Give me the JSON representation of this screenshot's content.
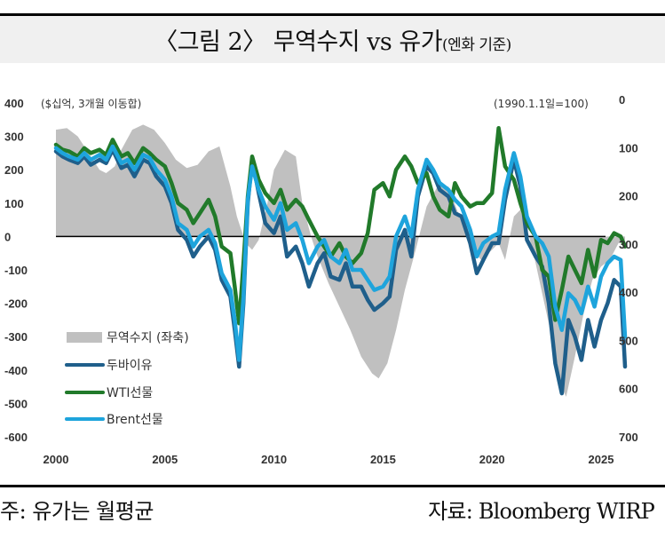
{
  "header": {
    "title_main": "〈그림 2〉 무역수지 vs 유가",
    "title_sub": "(엔화 기준)"
  },
  "footer": {
    "note": "주: 유가는 월평균",
    "source": "자료: Bloomberg WIRP"
  },
  "colors": {
    "trade_balance": "#c0c0c0",
    "dubai": "#1f5f8b",
    "wti": "#217a2a",
    "brent": "#1ea4dc",
    "zero_line": "#000000"
  },
  "chart_data": {
    "type": "line",
    "title": "무역수지 vs 유가(엔화 기준)",
    "left_axis": {
      "label": "($십억, 3개월 이동합)",
      "range": [
        -600,
        400
      ],
      "ticks": [
        400,
        300,
        200,
        100,
        0,
        -100,
        -200,
        -300,
        -400,
        -500,
        -600
      ]
    },
    "right_axis": {
      "label": "(1990.1.1일=100)",
      "range": [
        0,
        700
      ],
      "inverted": true,
      "ticks": [
        0,
        100,
        200,
        300,
        400,
        500,
        600,
        700
      ]
    },
    "x_axis": {
      "range": [
        2000,
        2026.3
      ],
      "ticks": [
        2000,
        2005,
        2010,
        2015,
        2020,
        2025
      ]
    },
    "legend": {
      "position": "bottom-left",
      "entries": [
        "무역수지 (좌축)",
        "두바이유",
        "WTI선물",
        "Brent선물"
      ]
    },
    "series": [
      {
        "name": "무역수지 (좌축)",
        "kind": "area",
        "axis": "left",
        "x": [
          2000,
          2000.5,
          2001,
          2001.5,
          2002,
          2002.3,
          2002.7,
          2003,
          2003.5,
          2004,
          2004.5,
          2005,
          2005.5,
          2006,
          2006.5,
          2007,
          2007.5,
          2008,
          2008.3,
          2008.7,
          2009,
          2009.3,
          2009.7,
          2010,
          2010.5,
          2011,
          2011.3,
          2011.7,
          2012,
          2012.5,
          2013,
          2013.5,
          2014,
          2014.5,
          2014.8,
          2015.2,
          2015.6,
          2016,
          2016.5,
          2017,
          2017.5,
          2018,
          2018.5,
          2019,
          2019.5,
          2020,
          2020.3,
          2020.6,
          2021,
          2021.3,
          2021.7,
          2022,
          2022.4,
          2022.8,
          2023.1,
          2023.4,
          2023.8,
          2024.2,
          2024.6,
          2025,
          2025.4,
          2025.8,
          2026.1
        ],
        "values": [
          320,
          325,
          300,
          250,
          200,
          190,
          210,
          260,
          320,
          335,
          320,
          280,
          230,
          205,
          215,
          255,
          270,
          150,
          60,
          -20,
          -40,
          -10,
          100,
          200,
          260,
          240,
          100,
          0,
          -60,
          -140,
          -210,
          -280,
          -360,
          -410,
          -425,
          -380,
          -280,
          -160,
          -40,
          90,
          150,
          150,
          60,
          -30,
          -70,
          -40,
          -20,
          -70,
          60,
          80,
          0,
          -80,
          -200,
          -320,
          -440,
          -480,
          -360,
          -230,
          -130,
          -90,
          -70,
          -20,
          -10
        ]
      },
      {
        "name": "두바이유",
        "kind": "line",
        "axis": "left",
        "x": [
          2000,
          2000.3,
          2000.6,
          2001,
          2001.3,
          2001.6,
          2002,
          2002.3,
          2002.6,
          2003,
          2003.3,
          2003.6,
          2004,
          2004.3,
          2004.6,
          2005,
          2005.3,
          2005.6,
          2006,
          2006.3,
          2006.6,
          2007,
          2007.3,
          2007.6,
          2008,
          2008.2,
          2008.4,
          2008.6,
          2008.8,
          2009,
          2009.3,
          2009.6,
          2010,
          2010.3,
          2010.6,
          2011,
          2011.3,
          2011.6,
          2012,
          2012.3,
          2012.6,
          2013,
          2013.3,
          2013.6,
          2014,
          2014.3,
          2014.6,
          2015,
          2015.3,
          2015.6,
          2016,
          2016.3,
          2016.6,
          2017,
          2017.3,
          2017.6,
          2018,
          2018.3,
          2018.6,
          2019,
          2019.3,
          2019.6,
          2020,
          2020.3,
          2020.6,
          2021,
          2021.3,
          2021.6,
          2022,
          2022.3,
          2022.6,
          2022.9,
          2023.2,
          2023.5,
          2023.8,
          2024.1,
          2024.4,
          2024.7,
          2025,
          2025.3,
          2025.6,
          2025.9,
          2026.1
        ],
        "values": [
          255,
          240,
          230,
          220,
          240,
          215,
          230,
          220,
          260,
          205,
          215,
          180,
          230,
          220,
          180,
          150,
          100,
          20,
          -10,
          -60,
          -30,
          0,
          -40,
          -130,
          -180,
          -280,
          -390,
          -200,
          100,
          230,
          130,
          40,
          10,
          60,
          -60,
          -30,
          -80,
          -150,
          -80,
          -50,
          -120,
          -130,
          -80,
          -150,
          -150,
          -190,
          -220,
          -200,
          -180,
          -40,
          20,
          -60,
          120,
          210,
          190,
          140,
          120,
          70,
          60,
          -20,
          -110,
          -70,
          -20,
          -20,
          110,
          230,
          150,
          -10,
          -60,
          -90,
          -200,
          -380,
          -470,
          -250,
          -300,
          -370,
          -250,
          -330,
          -250,
          -200,
          -130,
          -150,
          -390
        ]
      },
      {
        "name": "WTI선물",
        "kind": "line",
        "axis": "left",
        "x": [
          2000,
          2000.3,
          2000.6,
          2001,
          2001.3,
          2001.6,
          2002,
          2002.3,
          2002.6,
          2003,
          2003.3,
          2003.6,
          2004,
          2004.3,
          2004.6,
          2005,
          2005.3,
          2005.6,
          2006,
          2006.3,
          2006.6,
          2007,
          2007.3,
          2007.6,
          2008,
          2008.2,
          2008.4,
          2008.6,
          2008.8,
          2009,
          2009.3,
          2009.6,
          2010,
          2010.3,
          2010.6,
          2011,
          2011.3,
          2011.6,
          2012,
          2012.3,
          2012.6,
          2013,
          2013.3,
          2013.6,
          2014,
          2014.3,
          2014.6,
          2015,
          2015.3,
          2015.6,
          2016,
          2016.3,
          2016.6,
          2017,
          2017.3,
          2017.6,
          2018,
          2018.3,
          2018.6,
          2019,
          2019.3,
          2019.6,
          2020,
          2020.3,
          2020.6,
          2021,
          2021.3,
          2021.6,
          2022,
          2022.3,
          2022.6,
          2022.9,
          2023.2,
          2023.5,
          2023.8,
          2024.1,
          2024.4,
          2024.7,
          2025,
          2025.3,
          2025.6,
          2025.9,
          2026.1
        ],
        "values": [
          275,
          260,
          255,
          240,
          265,
          250,
          260,
          245,
          290,
          240,
          250,
          220,
          265,
          250,
          230,
          210,
          160,
          100,
          80,
          40,
          70,
          110,
          60,
          -30,
          -50,
          -150,
          -260,
          -80,
          120,
          240,
          170,
          130,
          100,
          140,
          80,
          110,
          90,
          50,
          0,
          -30,
          -60,
          -20,
          -60,
          -80,
          -50,
          10,
          140,
          160,
          120,
          200,
          240,
          210,
          160,
          190,
          120,
          80,
          60,
          160,
          120,
          90,
          100,
          100,
          130,
          325,
          210,
          170,
          100,
          40,
          0,
          -100,
          -120,
          -250,
          -160,
          -60,
          -100,
          -140,
          -40,
          -120,
          -10,
          -20,
          10,
          0,
          -30
        ]
      },
      {
        "name": "Brent선물",
        "kind": "line",
        "axis": "left",
        "x": [
          2000,
          2000.3,
          2000.6,
          2001,
          2001.3,
          2001.6,
          2002,
          2002.3,
          2002.6,
          2003,
          2003.3,
          2003.6,
          2004,
          2004.3,
          2004.6,
          2005,
          2005.3,
          2005.6,
          2006,
          2006.3,
          2006.6,
          2007,
          2007.3,
          2007.6,
          2008,
          2008.2,
          2008.4,
          2008.6,
          2008.8,
          2009,
          2009.3,
          2009.6,
          2010,
          2010.3,
          2010.6,
          2011,
          2011.3,
          2011.6,
          2012,
          2012.3,
          2012.6,
          2013,
          2013.3,
          2013.6,
          2014,
          2014.3,
          2014.6,
          2015,
          2015.3,
          2015.6,
          2016,
          2016.3,
          2016.6,
          2017,
          2017.3,
          2017.6,
          2018,
          2018.3,
          2018.6,
          2019,
          2019.3,
          2019.6,
          2020,
          2020.3,
          2020.6,
          2021,
          2021.3,
          2021.6,
          2022,
          2022.3,
          2022.6,
          2022.9,
          2023.2,
          2023.5,
          2023.8,
          2024.1,
          2024.4,
          2024.7,
          2025,
          2025.3,
          2025.6,
          2025.9,
          2026.1
        ],
        "values": [
          265,
          250,
          240,
          230,
          250,
          230,
          245,
          230,
          270,
          220,
          230,
          200,
          245,
          235,
          200,
          170,
          120,
          40,
          20,
          -30,
          0,
          20,
          -20,
          -110,
          -160,
          -250,
          -370,
          -180,
          110,
          210,
          140,
          90,
          50,
          100,
          20,
          40,
          -10,
          -80,
          -30,
          -10,
          -60,
          -80,
          -40,
          -100,
          -100,
          -130,
          -160,
          -150,
          -120,
          0,
          60,
          0,
          140,
          230,
          200,
          160,
          140,
          110,
          90,
          20,
          -60,
          -20,
          0,
          10,
          140,
          250,
          180,
          60,
          0,
          -20,
          -60,
          -210,
          -280,
          -170,
          -190,
          -230,
          -150,
          -210,
          -120,
          -80,
          -60,
          -70,
          -300
        ]
      }
    ]
  }
}
